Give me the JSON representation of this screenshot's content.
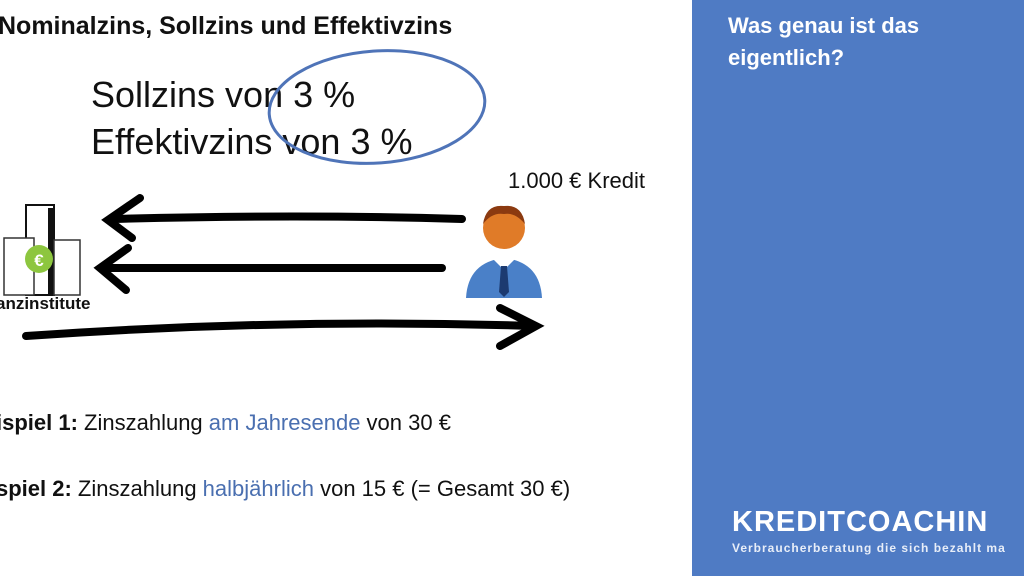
{
  "slide": {
    "title": "Nominalzins, Sollzins und Effektivzins",
    "line1": "Sollzins von 3 %",
    "line2": "Effektivzins von 3 %",
    "amount": "1.000 € Kredit",
    "bank_label": "anzinstitute",
    "examples": [
      {
        "label": "ispiel 1:",
        "pre": " Zinszahlung ",
        "highlight": "am Jahresende",
        "post": " von 30 €"
      },
      {
        "label": "spiel 2:",
        "pre": " Zinszahlung ",
        "highlight": "halbjährlich",
        "post": " von 15 € (= Gesamt 30 €)"
      }
    ]
  },
  "sidebar": {
    "question": "Was genau ist das eigentlich?",
    "logo": "KREDITCOACHIN",
    "tagline": "Verbraucherberatung die sich bezahlt ma",
    "color": "#4f7bc4"
  }
}
